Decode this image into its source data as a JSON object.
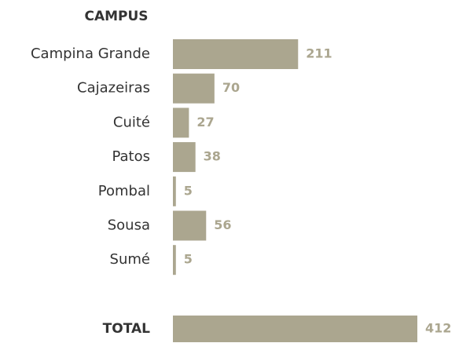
{
  "chart_data": {
    "type": "bar",
    "header": "CAMPUS",
    "categories": [
      "Campina Grande",
      "Cajazeiras",
      "Cuité",
      "Patos",
      "Pombal",
      "Sousa",
      "Sumé"
    ],
    "values": [
      211,
      70,
      27,
      38,
      5,
      56,
      5
    ],
    "color": "#aba68f",
    "total": {
      "label": "TOTAL",
      "value": 412
    }
  }
}
